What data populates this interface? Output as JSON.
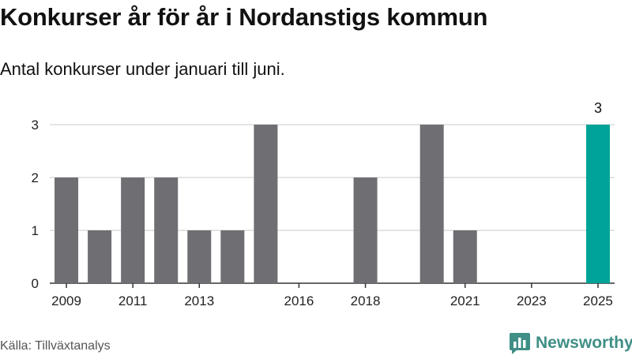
{
  "chart_data": {
    "type": "bar",
    "title": "Konkurser år för år i Nordanstigs kommun",
    "subtitle": "Antal konkurser under januari till juni.",
    "categories": [
      2009,
      2010,
      2011,
      2012,
      2013,
      2014,
      2015,
      2016,
      2017,
      2018,
      2019,
      2020,
      2021,
      2022,
      2023,
      2024,
      2025
    ],
    "values": [
      2,
      1,
      2,
      2,
      1,
      1,
      3,
      0,
      0,
      2,
      0,
      3,
      1,
      0,
      0,
      0,
      3
    ],
    "x_tick_labels": [
      2009,
      2011,
      2013,
      2016,
      2018,
      2021,
      2023,
      2025
    ],
    "y_ticks": [
      0,
      1,
      2,
      3
    ],
    "ylim": [
      0,
      3
    ],
    "highlight": {
      "category": 2025,
      "label": "3",
      "color": "#00a398"
    },
    "bar_color": "#6e6e73",
    "grid": true,
    "xlabel": "",
    "ylabel": ""
  },
  "footer": {
    "source": "Källa: Tillväxtanalys",
    "brand": "Newsworthy",
    "brand_icon": "bar-chart-icon",
    "brand_color": "#3f8f86"
  }
}
